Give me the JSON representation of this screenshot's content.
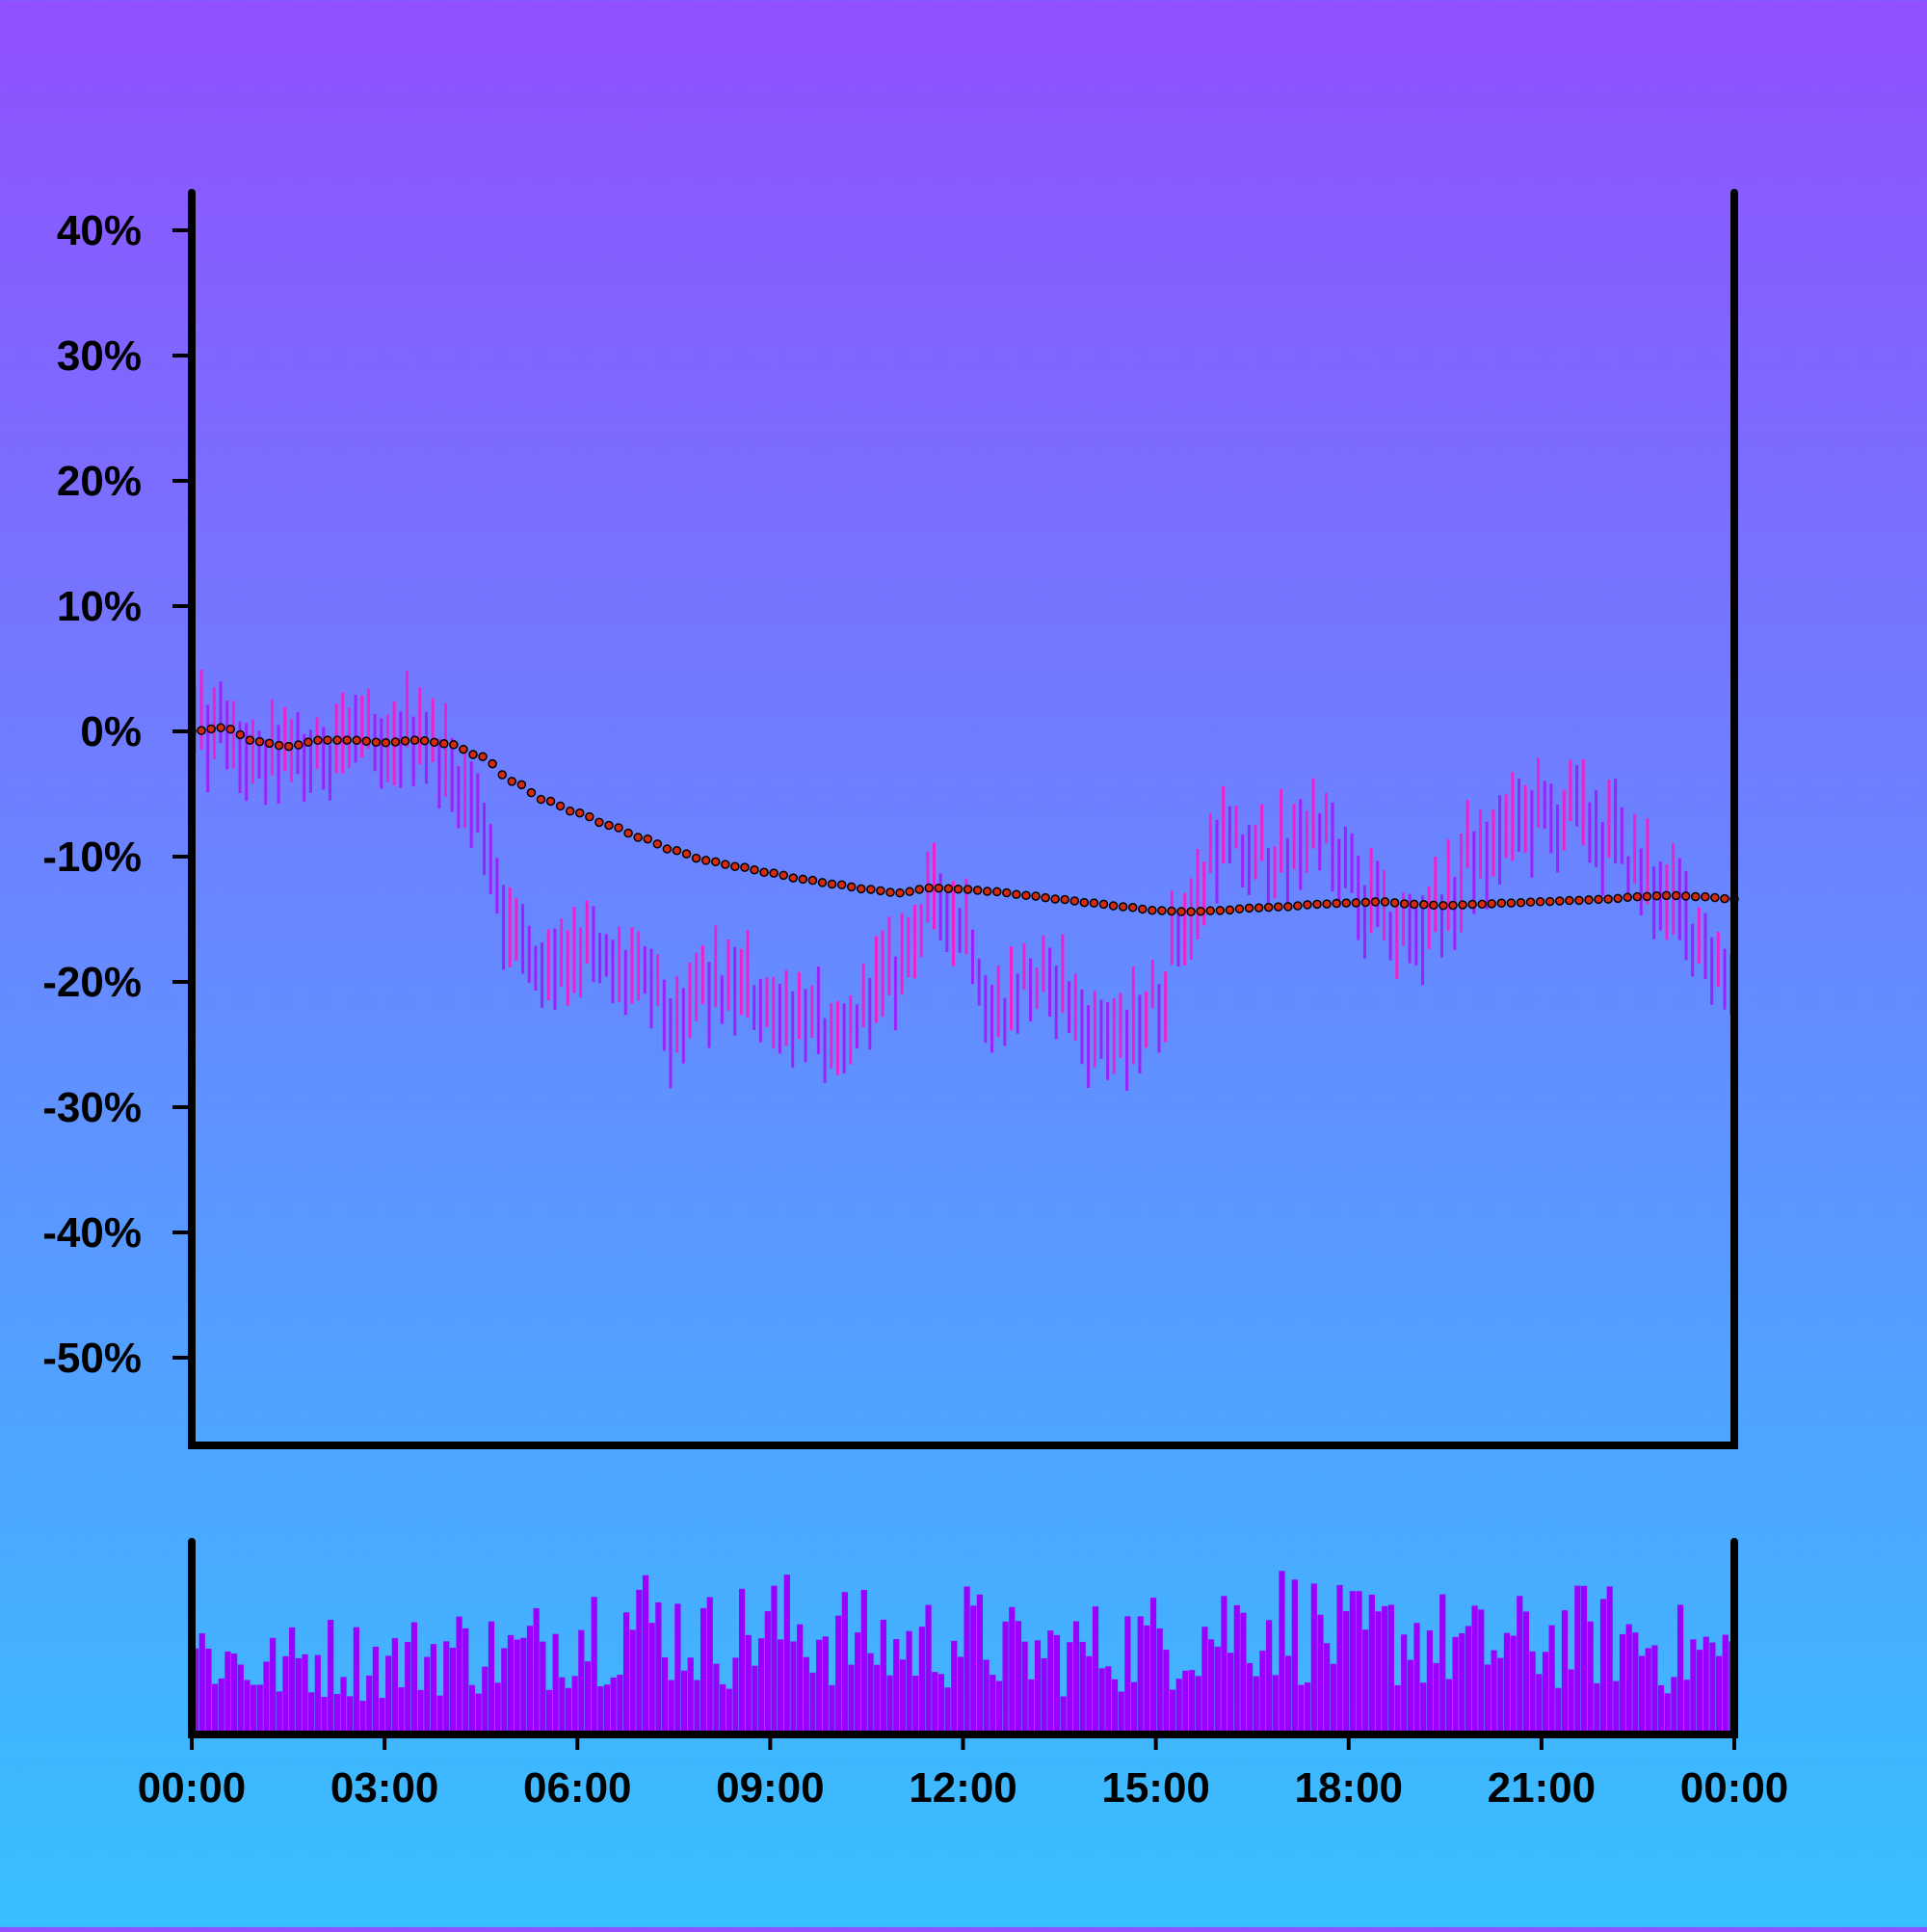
{
  "chart_data": [
    {
      "type": "ohlc",
      "title": "",
      "xlabel": "",
      "ylabel": "",
      "y_unit": "%",
      "ylim": [
        -57,
        43
      ],
      "xlim": [
        "00:00",
        "24:00"
      ],
      "y_ticks": [
        "40%",
        "30%",
        "20%",
        "10%",
        "0%",
        "-10%",
        "-20%",
        "-30%",
        "-40%",
        "-50%"
      ],
      "y_tick_values": [
        40,
        30,
        20,
        10,
        0,
        -10,
        -20,
        -30,
        -40,
        -50
      ],
      "grid": false,
      "legend": "none",
      "series": [
        {
          "kind": "price_bars",
          "colors": {
            "up": "#ee22cc",
            "down": "#9922ff"
          },
          "anchors": [
            {
              "t": "00:00",
              "v": 0
            },
            {
              "t": "00:30",
              "v": 0
            },
            {
              "t": "01:00",
              "v": -3
            },
            {
              "t": "01:30",
              "v": -2
            },
            {
              "t": "02:00",
              "v": -2
            },
            {
              "t": "02:30",
              "v": 0
            },
            {
              "t": "03:00",
              "v": -2
            },
            {
              "t": "03:30",
              "v": 1
            },
            {
              "t": "04:00",
              "v": -3
            },
            {
              "t": "04:30",
              "v": -7
            },
            {
              "t": "05:00",
              "v": -17
            },
            {
              "t": "05:30",
              "v": -19
            },
            {
              "t": "06:00",
              "v": -17
            },
            {
              "t": "06:30",
              "v": -19
            },
            {
              "t": "07:00",
              "v": -20
            },
            {
              "t": "07:30",
              "v": -24
            },
            {
              "t": "08:00",
              "v": -21
            },
            {
              "t": "08:30",
              "v": -20
            },
            {
              "t": "09:00",
              "v": -22
            },
            {
              "t": "09:30",
              "v": -22
            },
            {
              "t": "10:00",
              "v": -26
            },
            {
              "t": "10:30",
              "v": -22
            },
            {
              "t": "11:00",
              "v": -19
            },
            {
              "t": "11:30",
              "v": -14
            },
            {
              "t": "12:00",
              "v": -15
            },
            {
              "t": "12:30",
              "v": -22
            },
            {
              "t": "13:00",
              "v": -20
            },
            {
              "t": "13:30",
              "v": -21
            },
            {
              "t": "14:00",
              "v": -24
            },
            {
              "t": "14:30",
              "v": -25
            },
            {
              "t": "15:00",
              "v": -21
            },
            {
              "t": "15:30",
              "v": -15
            },
            {
              "t": "16:00",
              "v": -8
            },
            {
              "t": "16:30",
              "v": -10
            },
            {
              "t": "17:00",
              "v": -10
            },
            {
              "t": "17:30",
              "v": -7
            },
            {
              "t": "18:00",
              "v": -12
            },
            {
              "t": "18:30",
              "v": -15
            },
            {
              "t": "19:00",
              "v": -16
            },
            {
              "t": "19:30",
              "v": -14
            },
            {
              "t": "20:00",
              "v": -10
            },
            {
              "t": "20:30",
              "v": -8
            },
            {
              "t": "21:00",
              "v": -7
            },
            {
              "t": "21:30",
              "v": -7
            },
            {
              "t": "22:00",
              "v": -8
            },
            {
              "t": "22:30",
              "v": -11
            },
            {
              "t": "23:00",
              "v": -14
            },
            {
              "t": "23:30",
              "v": -17
            },
            {
              "t": "24:00",
              "v": -19
            }
          ]
        },
        {
          "kind": "moving_average",
          "style": "dotted",
          "color": "#d42a10",
          "anchors": [
            {
              "t": "00:00",
              "v": 0
            },
            {
              "t": "00:30",
              "v": 0.3
            },
            {
              "t": "01:00",
              "v": -0.8
            },
            {
              "t": "01:30",
              "v": -1.2
            },
            {
              "t": "02:00",
              "v": -0.7
            },
            {
              "t": "02:30",
              "v": -0.7
            },
            {
              "t": "03:00",
              "v": -0.9
            },
            {
              "t": "03:30",
              "v": -0.7
            },
            {
              "t": "04:00",
              "v": -1
            },
            {
              "t": "04:30",
              "v": -2
            },
            {
              "t": "05:00",
              "v": -4
            },
            {
              "t": "05:30",
              "v": -5.5
            },
            {
              "t": "06:00",
              "v": -6.5
            },
            {
              "t": "06:30",
              "v": -7.5
            },
            {
              "t": "07:00",
              "v": -8.5
            },
            {
              "t": "07:30",
              "v": -9.5
            },
            {
              "t": "08:00",
              "v": -10.3
            },
            {
              "t": "08:30",
              "v": -10.8
            },
            {
              "t": "09:00",
              "v": -11.3
            },
            {
              "t": "09:30",
              "v": -11.8
            },
            {
              "t": "10:00",
              "v": -12.2
            },
            {
              "t": "10:30",
              "v": -12.6
            },
            {
              "t": "11:00",
              "v": -12.9
            },
            {
              "t": "11:30",
              "v": -12.5
            },
            {
              "t": "12:00",
              "v": -12.6
            },
            {
              "t": "12:30",
              "v": -12.8
            },
            {
              "t": "13:00",
              "v": -13.1
            },
            {
              "t": "13:30",
              "v": -13.4
            },
            {
              "t": "14:00",
              "v": -13.7
            },
            {
              "t": "14:30",
              "v": -14
            },
            {
              "t": "15:00",
              "v": -14.3
            },
            {
              "t": "15:30",
              "v": -14.4
            },
            {
              "t": "16:00",
              "v": -14.3
            },
            {
              "t": "16:30",
              "v": -14.1
            },
            {
              "t": "17:00",
              "v": -14
            },
            {
              "t": "17:30",
              "v": -13.8
            },
            {
              "t": "18:00",
              "v": -13.7
            },
            {
              "t": "18:30",
              "v": -13.6
            },
            {
              "t": "19:00",
              "v": -13.8
            },
            {
              "t": "19:30",
              "v": -13.9
            },
            {
              "t": "20:00",
              "v": -13.8
            },
            {
              "t": "20:30",
              "v": -13.7
            },
            {
              "t": "21:00",
              "v": -13.6
            },
            {
              "t": "21:30",
              "v": -13.5
            },
            {
              "t": "22:00",
              "v": -13.4
            },
            {
              "t": "22:30",
              "v": -13.2
            },
            {
              "t": "23:00",
              "v": -13.1
            },
            {
              "t": "23:30",
              "v": -13.2
            },
            {
              "t": "24:00",
              "v": -13.4
            }
          ]
        }
      ]
    },
    {
      "type": "bar",
      "title": "",
      "xlabel": "",
      "ylabel": "",
      "x_ticks": [
        "00:00",
        "03:00",
        "06:00",
        "09:00",
        "12:00",
        "15:00",
        "18:00",
        "21:00",
        "00:00"
      ],
      "color": "#9b00ff",
      "grid": false,
      "legend": "none",
      "note_values_relative": "volume heights relative, 0-1 scale",
      "volume_envelope": [
        0.6,
        0.45,
        0.55,
        0.5,
        0.6,
        0.55,
        0.75,
        0.8,
        0.65,
        0.75,
        0.7,
        0.6,
        0.7,
        0.55,
        0.6,
        0.65,
        0.75,
        0.8,
        0.65,
        0.7,
        0.6,
        0.65,
        0.7,
        0.6,
        0.55
      ]
    }
  ]
}
